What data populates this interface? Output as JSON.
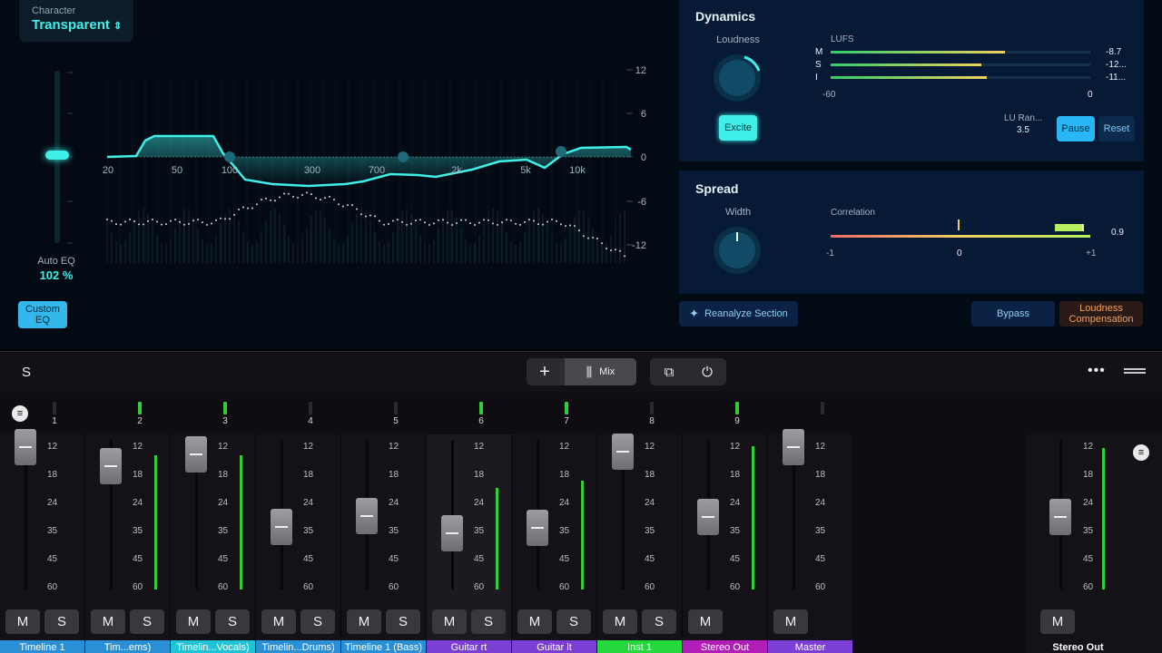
{
  "eq": {
    "character_label": "Character",
    "character_value": "Transparent",
    "auto_eq_label": "Auto EQ",
    "auto_eq_value": "102 %",
    "custom_eq_label": "Custom EQ",
    "freq_labels": [
      "20",
      "50",
      "100",
      "300",
      "700",
      "2k",
      "5k",
      "10k"
    ],
    "db_labels": [
      "12",
      "6",
      "0",
      "-6",
      "-12"
    ]
  },
  "dynamics": {
    "title": "Dynamics",
    "loudness_label": "Loudness",
    "excite_label": "Excite",
    "lufs_label": "LUFS",
    "rows": [
      {
        "label": "M",
        "value": "-8.7",
        "fill": 0.67
      },
      {
        "label": "S",
        "value": "-12...",
        "fill": 0.58
      },
      {
        "label": "I",
        "value": "-11...",
        "fill": 0.6
      }
    ],
    "scale_min": "-60",
    "scale_max": "0",
    "lu_range_label": "LU Ran...",
    "lu_range_value": "3.5",
    "pause_label": "Pause",
    "reset_label": "Reset"
  },
  "spread": {
    "title": "Spread",
    "width_label": "Width",
    "correlation_label": "Correlation",
    "correlation_value": "0.9",
    "scale": [
      "-1",
      "0",
      "+1"
    ]
  },
  "actions": {
    "reanalyze_label": "Reanalyze Section",
    "bypass_label": "Bypass",
    "loudness_comp_label": "Loudness Compensation"
  },
  "toolbar": {
    "left_label": "S",
    "mix_label": "Mix"
  },
  "scale_marks": [
    "12",
    "18",
    "24",
    "35",
    "45",
    "60"
  ],
  "colors": {
    "accent": "#3ff0e8",
    "pause": "#29b6f6",
    "loudness_comp": "#f0a060"
  },
  "channels": [
    {
      "num": "1",
      "name": "Timeline 1",
      "color": "#2b8fd6",
      "ms": [
        "M",
        "S"
      ]
    },
    {
      "num": "2",
      "name": "Tim...ems)",
      "color": "#2b8fd6",
      "ms": [
        "M",
        "S"
      ]
    },
    {
      "num": "3",
      "name": "Timelin...Vocals)",
      "color": "#21c4d6",
      "ms": [
        "M",
        "S"
      ]
    },
    {
      "num": "4",
      "name": "Timelin...Drums)",
      "color": "#2b8fd6",
      "ms": [
        "M",
        "S"
      ]
    },
    {
      "num": "5",
      "name": "Timeline 1 (Bass)",
      "color": "#2b8fd6",
      "ms": [
        "M",
        "S"
      ]
    },
    {
      "num": "6",
      "name": "Guitar rt",
      "color": "#7b3fd6",
      "ms": [
        "M",
        "S"
      ]
    },
    {
      "num": "7",
      "name": "Guitar lt",
      "color": "#7b3fd6",
      "ms": [
        "M",
        "S"
      ]
    },
    {
      "num": "8",
      "name": "Inst 1",
      "color": "#25d93c",
      "ms": [
        "M",
        "S"
      ]
    },
    {
      "num": "9",
      "name": "Stereo Out",
      "color": "#b21fb8",
      "ms": [
        "M"
      ]
    },
    {
      "num": "",
      "name": "Master",
      "color": "#7b3fd6",
      "ms": [
        "M"
      ]
    }
  ],
  "stereo_out": {
    "name": "Stereo Out",
    "ms": "M"
  }
}
